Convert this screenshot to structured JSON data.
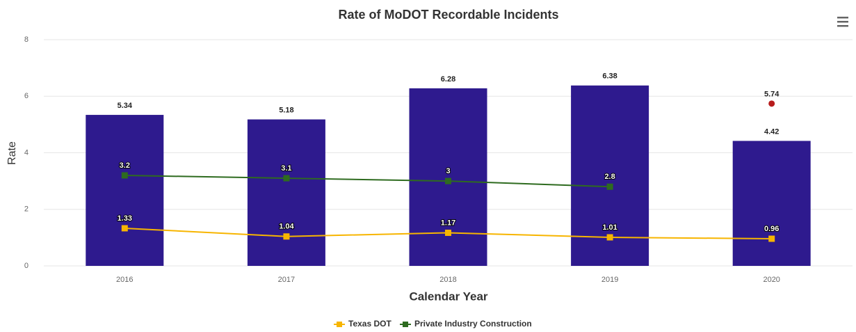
{
  "chart_data": {
    "type": "bar",
    "title": "Rate of MoDOT Recordable Incidents",
    "x_label": "Calendar Year",
    "y_label": "Rate",
    "categories": [
      "2016",
      "2017",
      "2018",
      "2019",
      "2020"
    ],
    "ylim": [
      0,
      8
    ],
    "yticks": [
      0,
      2,
      4,
      6,
      8
    ],
    "grid": true,
    "legend": "bottom",
    "series": [
      {
        "type": "bar",
        "color": "#2e1a8e",
        "values": [
          5.34,
          5.18,
          6.28,
          6.38,
          4.42
        ]
      },
      {
        "type": "scatter",
        "color": "#b71c1c",
        "values": [
          null,
          null,
          null,
          null,
          5.74
        ]
      },
      {
        "type": "line",
        "name": "Texas DOT",
        "color": "#f7b500",
        "values": [
          1.33,
          1.04,
          1.17,
          1.01,
          0.96
        ]
      },
      {
        "type": "line",
        "name": "Private Industry Construction",
        "color": "#2e6b1f",
        "values": [
          3.2,
          3.1,
          3,
          2.8,
          null
        ]
      }
    ]
  }
}
